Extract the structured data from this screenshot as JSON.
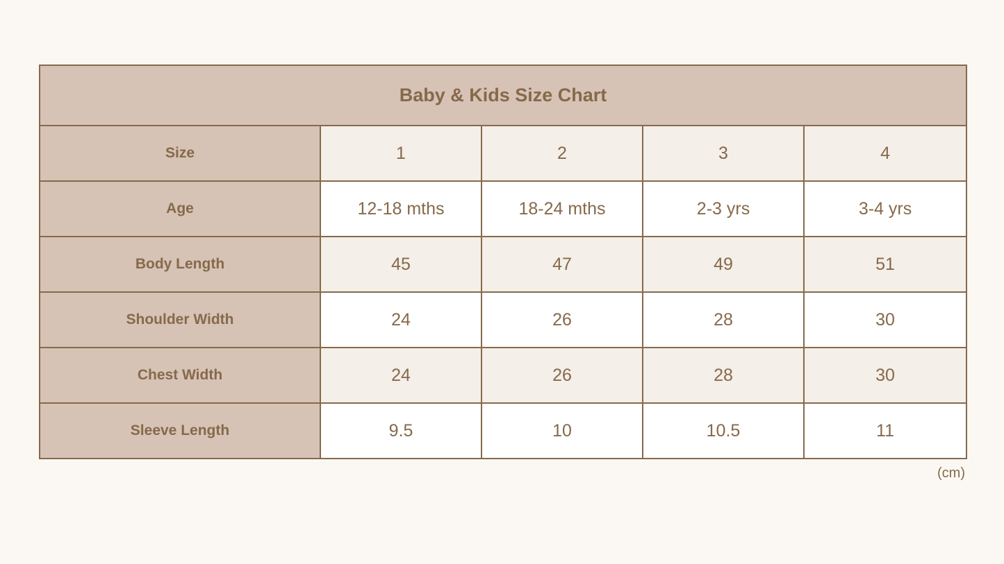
{
  "title": "Baby & Kids Size Chart",
  "unit_note": "(cm)",
  "colors": {
    "background": "#fbf8f3",
    "header_fill": "#d6c3b5",
    "border": "#86694b",
    "text": "#86694b",
    "row_shade": "#f4efe8",
    "row_plain": "#ffffff"
  },
  "rows": [
    {
      "label": "Size",
      "values": [
        "1",
        "2",
        "3",
        "4"
      ]
    },
    {
      "label": "Age",
      "values": [
        "12-18 mths",
        "18-24 mths",
        "2-3 yrs",
        "3-4 yrs"
      ]
    },
    {
      "label": "Body Length",
      "values": [
        "45",
        "47",
        "49",
        "51"
      ]
    },
    {
      "label": "Shoulder Width",
      "values": [
        "24",
        "26",
        "28",
        "30"
      ]
    },
    {
      "label": "Chest Width",
      "values": [
        "24",
        "26",
        "28",
        "30"
      ]
    },
    {
      "label": "Sleeve Length",
      "values": [
        "9.5",
        "10",
        "10.5",
        "11"
      ]
    }
  ]
}
